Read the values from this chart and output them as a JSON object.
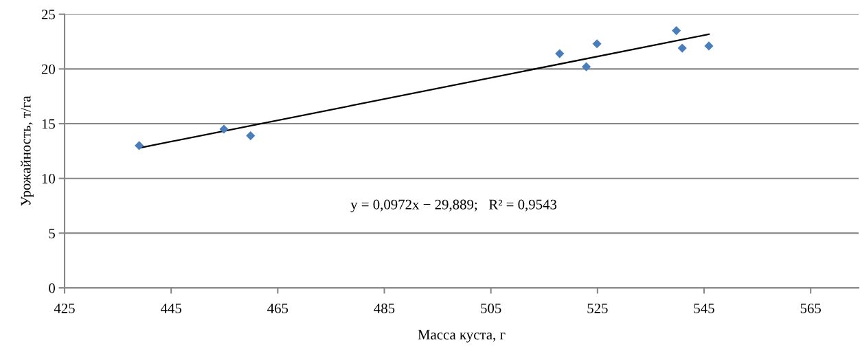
{
  "chart_data": {
    "type": "scatter",
    "xlabel": "Масса куста, г",
    "ylabel": "Урожайность, т/га",
    "xlim": [
      425,
      574
    ],
    "xticks": [
      425,
      445,
      465,
      485,
      505,
      525,
      545,
      565
    ],
    "ylim": [
      0,
      25
    ],
    "yticks": [
      0,
      5,
      10,
      15,
      20,
      25
    ],
    "grid": "y",
    "series": [
      {
        "marker": "diamond",
        "color": "#4a7ebb",
        "x": [
          439.0,
          454.9,
          459.9,
          517.9,
          522.9,
          524.9,
          539.8,
          540.9,
          545.9
        ],
        "values": [
          13.0,
          14.5,
          13.9,
          21.4,
          20.2,
          22.3,
          23.5,
          21.9,
          22.1
        ]
      },
      {
        "type": "line",
        "marker": "none",
        "color": "#000000",
        "x": [
          439.0,
          545.9
        ],
        "values": [
          12.78,
          23.17
        ]
      }
    ],
    "annotations": [
      "y = 0,0972x − 29,889;   R² = 0,9543"
    ]
  }
}
